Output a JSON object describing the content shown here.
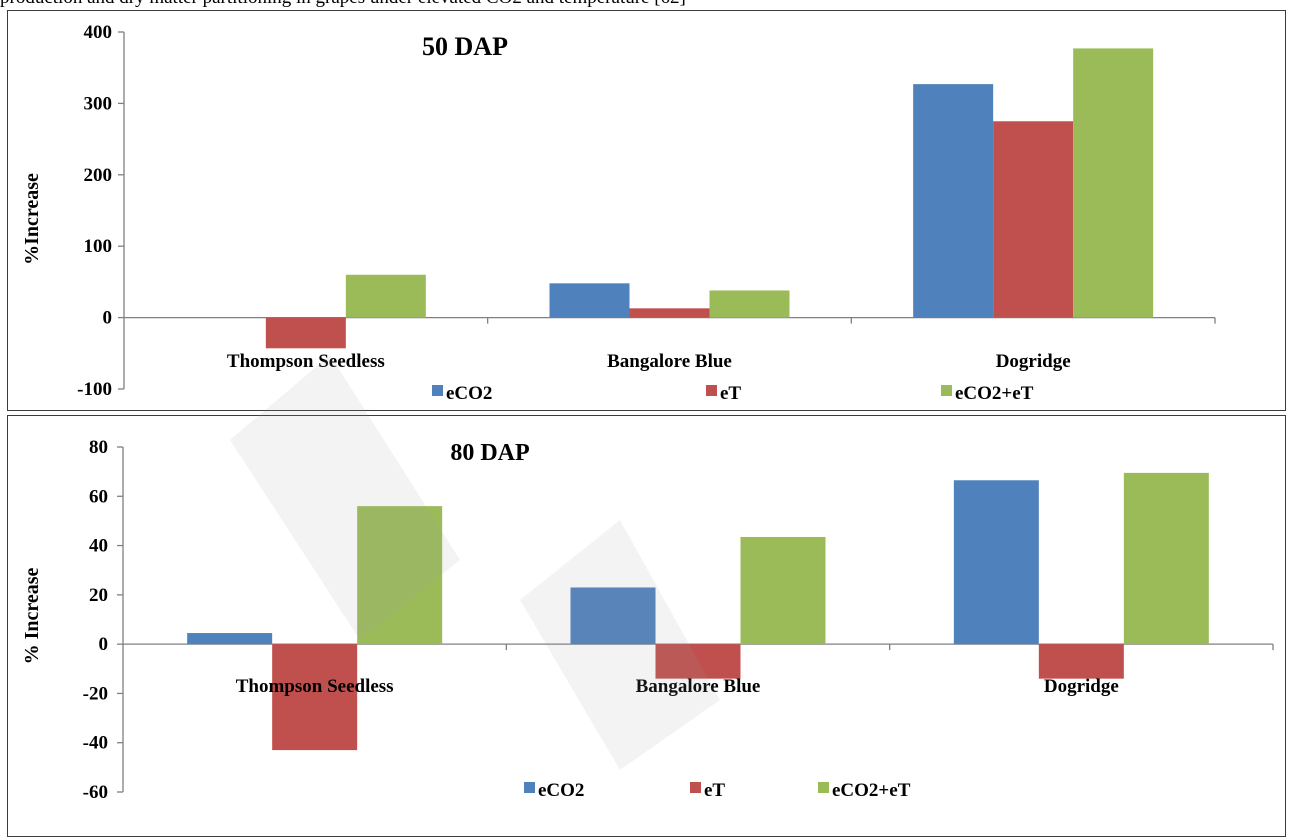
{
  "page": {
    "header_text": "production and dry matter partitioning in grapes under elevated CO2 and temperature [62]"
  },
  "colors": {
    "eCO2": "#4f81bd",
    "eT": "#c0504d",
    "eCO2+eT": "#9bbb59",
    "axis": "#808080",
    "frame": "#3c3c3c"
  },
  "chart_data": [
    {
      "type": "bar",
      "title": "50 DAP",
      "ylabel": "%Increase",
      "xlabel": "",
      "categories": [
        "Thompson Seedless",
        "Bangalore Blue",
        "Dogridge"
      ],
      "series": [
        {
          "name": "eCO2",
          "values": [
            0,
            48,
            327
          ]
        },
        {
          "name": "eT",
          "values": [
            -43,
            13,
            275
          ]
        },
        {
          "name": "eCO2+eT",
          "values": [
            60,
            38,
            377
          ]
        }
      ],
      "ylim": [
        -100,
        400
      ],
      "yticks": [
        -100,
        0,
        100,
        200,
        300,
        400
      ],
      "grid": false,
      "legend": "bottom"
    },
    {
      "type": "bar",
      "title": "80 DAP",
      "ylabel": "% Increase",
      "xlabel": "",
      "categories": [
        "Thompson Seedless",
        "Bangalore Blue",
        "Dogridge"
      ],
      "series": [
        {
          "name": "eCO2",
          "values": [
            4.5,
            23,
            66.5
          ]
        },
        {
          "name": "eT",
          "values": [
            -43,
            -14,
            -14
          ]
        },
        {
          "name": "eCO2+eT",
          "values": [
            56,
            43.5,
            69.5
          ]
        }
      ],
      "ylim": [
        -60,
        80
      ],
      "yticks": [
        -60,
        -40,
        -20,
        0,
        20,
        40,
        60,
        80
      ],
      "grid": false,
      "legend": "bottom"
    }
  ]
}
